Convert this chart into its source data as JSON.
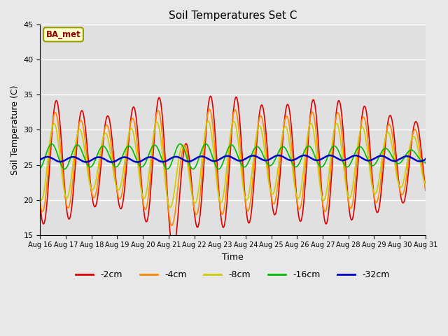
{
  "title": "Soil Temperatures Set C",
  "xlabel": "Time",
  "ylabel": "Soil Temperature (C)",
  "ylim": [
    15,
    45
  ],
  "yticks": [
    15,
    20,
    25,
    30,
    35,
    40,
    45
  ],
  "annotation": "BA_met",
  "fig_facecolor": "#e8e8e8",
  "ax_facecolor": "#e0e0e0",
  "line_colors": {
    "-2cm": "#dd0000",
    "-4cm": "#ff8800",
    "-8cm": "#cccc00",
    "-16cm": "#00bb00",
    "-32cm": "#0000cc"
  },
  "line_widths": {
    "-2cm": 1.2,
    "-4cm": 1.2,
    "-8cm": 1.2,
    "-16cm": 1.2,
    "-32cm": 1.8
  },
  "x_labels": [
    "Aug 16",
    "Aug 17",
    "Aug 18",
    "Aug 19",
    "Aug 20",
    "Aug 21",
    "Aug 22",
    "Aug 23",
    "Aug 24",
    "Aug 25",
    "Aug 26",
    "Aug 27",
    "Aug 28",
    "Aug 29",
    "Aug 30",
    "Aug 31"
  ],
  "n_points": 960,
  "legend_entries": [
    "-2cm",
    "-4cm",
    "-8cm",
    "-16cm",
    "-32cm"
  ]
}
